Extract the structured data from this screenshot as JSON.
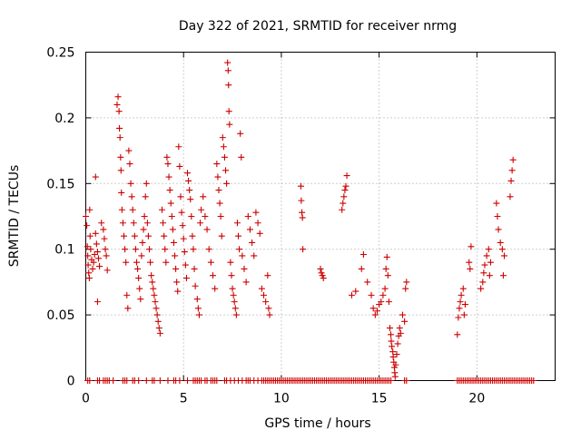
{
  "chart_data": {
    "type": "scatter",
    "title": "Day 322 of 2021, SRMTID for receiver nrmg",
    "xlabel": "GPS time / hours",
    "ylabel": "SRMTID / TECUs",
    "xlim": [
      0,
      24
    ],
    "ylim": [
      0,
      0.25
    ],
    "x_ticks": [
      0,
      5,
      10,
      15,
      20
    ],
    "x_tick_labels": [
      "0",
      "5",
      "10",
      "15",
      "20"
    ],
    "y_ticks": [
      0,
      0.05,
      0.1,
      0.15,
      0.2,
      0.25
    ],
    "y_tick_labels": [
      "0",
      "0.05",
      "0.1",
      "0.15",
      "0.2",
      "0.25"
    ],
    "grid": true,
    "series": [
      {
        "name": "SRMTID",
        "color": "#cc0000",
        "marker": "plus",
        "points": [
          [
            0.0,
            0.125
          ],
          [
            0.05,
            0.118
          ],
          [
            0.08,
            0.102
          ],
          [
            0.1,
            0.095
          ],
          [
            0.12,
            0.088
          ],
          [
            0.15,
            0.082
          ],
          [
            0.18,
            0.078
          ],
          [
            0.2,
            0.13
          ],
          [
            0.22,
            0.11
          ],
          [
            0.25,
            0.1
          ],
          [
            0.3,
            0.092
          ],
          [
            0.35,
            0.085
          ],
          [
            0.4,
            0.09
          ],
          [
            0.45,
            0.096
          ],
          [
            0.5,
            0.112
          ],
          [
            0.5,
            0.155
          ],
          [
            0.55,
            0.104
          ],
          [
            0.6,
            0.098
          ],
          [
            0.6,
            0.06
          ],
          [
            0.65,
            0.093
          ],
          [
            0.7,
            0.087
          ],
          [
            0.8,
            0.12
          ],
          [
            0.9,
            0.115
          ],
          [
            0.95,
            0.108
          ],
          [
            1.0,
            0.1
          ],
          [
            1.05,
            0.095
          ],
          [
            1.1,
            0.084
          ],
          [
            1.6,
            0.21
          ],
          [
            1.65,
            0.216
          ],
          [
            1.7,
            0.205
          ],
          [
            1.72,
            0.192
          ],
          [
            1.75,
            0.185
          ],
          [
            1.78,
            0.17
          ],
          [
            1.8,
            0.16
          ],
          [
            1.82,
            0.143
          ],
          [
            1.85,
            0.13
          ],
          [
            1.9,
            0.12
          ],
          [
            1.95,
            0.11
          ],
          [
            2.0,
            0.1
          ],
          [
            2.05,
            0.09
          ],
          [
            2.1,
            0.065
          ],
          [
            2.15,
            0.055
          ],
          [
            2.2,
            0.175
          ],
          [
            2.25,
            0.165
          ],
          [
            2.3,
            0.15
          ],
          [
            2.35,
            0.14
          ],
          [
            2.4,
            0.13
          ],
          [
            2.45,
            0.12
          ],
          [
            2.5,
            0.11
          ],
          [
            2.55,
            0.1
          ],
          [
            2.6,
            0.09
          ],
          [
            2.65,
            0.085
          ],
          [
            2.7,
            0.078
          ],
          [
            2.75,
            0.07
          ],
          [
            2.8,
            0.062
          ],
          [
            2.85,
            0.095
          ],
          [
            2.9,
            0.105
          ],
          [
            2.95,
            0.115
          ],
          [
            3.0,
            0.125
          ],
          [
            3.05,
            0.14
          ],
          [
            3.1,
            0.15
          ],
          [
            3.15,
            0.12
          ],
          [
            3.2,
            0.11
          ],
          [
            3.25,
            0.1
          ],
          [
            3.3,
            0.09
          ],
          [
            3.35,
            0.08
          ],
          [
            3.4,
            0.075
          ],
          [
            3.45,
            0.07
          ],
          [
            3.5,
            0.065
          ],
          [
            3.55,
            0.06
          ],
          [
            3.6,
            0.055
          ],
          [
            3.65,
            0.05
          ],
          [
            3.7,
            0.045
          ],
          [
            3.75,
            0.04
          ],
          [
            3.8,
            0.036
          ],
          [
            3.9,
            0.13
          ],
          [
            3.95,
            0.12
          ],
          [
            4.0,
            0.11
          ],
          [
            4.05,
            0.1
          ],
          [
            4.1,
            0.09
          ],
          [
            4.15,
            0.17
          ],
          [
            4.2,
            0.165
          ],
          [
            4.25,
            0.155
          ],
          [
            4.3,
            0.145
          ],
          [
            4.35,
            0.135
          ],
          [
            4.4,
            0.125
          ],
          [
            4.45,
            0.115
          ],
          [
            4.5,
            0.105
          ],
          [
            4.55,
            0.095
          ],
          [
            4.6,
            0.085
          ],
          [
            4.65,
            0.075
          ],
          [
            4.7,
            0.068
          ],
          [
            4.75,
            0.178
          ],
          [
            4.8,
            0.163
          ],
          [
            4.85,
            0.14
          ],
          [
            4.9,
            0.128
          ],
          [
            4.95,
            0.118
          ],
          [
            5.0,
            0.108
          ],
          [
            5.05,
            0.098
          ],
          [
            5.1,
            0.088
          ],
          [
            5.15,
            0.078
          ],
          [
            5.2,
            0.158
          ],
          [
            5.25,
            0.152
          ],
          [
            5.3,
            0.145
          ],
          [
            5.35,
            0.138
          ],
          [
            5.4,
            0.125
          ],
          [
            5.45,
            0.11
          ],
          [
            5.5,
            0.1
          ],
          [
            5.55,
            0.085
          ],
          [
            5.6,
            0.072
          ],
          [
            5.7,
            0.062
          ],
          [
            5.75,
            0.055
          ],
          [
            5.8,
            0.05
          ],
          [
            5.85,
            0.12
          ],
          [
            5.9,
            0.13
          ],
          [
            6.0,
            0.14
          ],
          [
            6.1,
            0.125
          ],
          [
            6.2,
            0.115
          ],
          [
            6.3,
            0.1
          ],
          [
            6.4,
            0.09
          ],
          [
            6.5,
            0.08
          ],
          [
            6.6,
            0.07
          ],
          [
            6.7,
            0.165
          ],
          [
            6.75,
            0.155
          ],
          [
            6.8,
            0.145
          ],
          [
            6.85,
            0.135
          ],
          [
            6.9,
            0.125
          ],
          [
            6.95,
            0.11
          ],
          [
            7.0,
            0.185
          ],
          [
            7.05,
            0.178
          ],
          [
            7.1,
            0.17
          ],
          [
            7.15,
            0.16
          ],
          [
            7.2,
            0.15
          ],
          [
            7.25,
            0.242
          ],
          [
            7.28,
            0.236
          ],
          [
            7.3,
            0.225
          ],
          [
            7.32,
            0.205
          ],
          [
            7.35,
            0.195
          ],
          [
            7.4,
            0.09
          ],
          [
            7.45,
            0.08
          ],
          [
            7.5,
            0.07
          ],
          [
            7.55,
            0.065
          ],
          [
            7.6,
            0.06
          ],
          [
            7.65,
            0.055
          ],
          [
            7.7,
            0.05
          ],
          [
            7.75,
            0.12
          ],
          [
            7.8,
            0.11
          ],
          [
            7.85,
            0.1
          ],
          [
            7.9,
            0.188
          ],
          [
            7.95,
            0.17
          ],
          [
            8.0,
            0.095
          ],
          [
            8.1,
            0.085
          ],
          [
            8.2,
            0.075
          ],
          [
            8.3,
            0.125
          ],
          [
            8.4,
            0.115
          ],
          [
            8.5,
            0.105
          ],
          [
            8.6,
            0.095
          ],
          [
            8.7,
            0.128
          ],
          [
            8.8,
            0.12
          ],
          [
            8.9,
            0.112
          ],
          [
            9.0,
            0.07
          ],
          [
            9.1,
            0.065
          ],
          [
            9.2,
            0.06
          ],
          [
            9.3,
            0.08
          ],
          [
            9.35,
            0.055
          ],
          [
            9.4,
            0.05
          ],
          [
            11.0,
            0.148
          ],
          [
            11.02,
            0.137
          ],
          [
            11.05,
            0.128
          ],
          [
            11.08,
            0.124
          ],
          [
            11.1,
            0.1
          ],
          [
            12.0,
            0.085
          ],
          [
            12.05,
            0.082
          ],
          [
            12.1,
            0.08
          ],
          [
            12.15,
            0.078
          ],
          [
            13.1,
            0.13
          ],
          [
            13.15,
            0.135
          ],
          [
            13.2,
            0.14
          ],
          [
            13.25,
            0.145
          ],
          [
            13.3,
            0.148
          ],
          [
            13.35,
            0.156
          ],
          [
            13.6,
            0.065
          ],
          [
            13.8,
            0.068
          ],
          [
            14.1,
            0.085
          ],
          [
            14.2,
            0.096
          ],
          [
            14.4,
            0.075
          ],
          [
            14.6,
            0.065
          ],
          [
            14.7,
            0.055
          ],
          [
            14.8,
            0.05
          ],
          [
            14.9,
            0.053
          ],
          [
            15.0,
            0.058
          ],
          [
            15.1,
            0.06
          ],
          [
            15.2,
            0.065
          ],
          [
            15.3,
            0.07
          ],
          [
            15.35,
            0.085
          ],
          [
            15.4,
            0.094
          ],
          [
            15.45,
            0.08
          ],
          [
            15.5,
            0.06
          ],
          [
            15.55,
            0.04
          ],
          [
            15.6,
            0.035
          ],
          [
            15.62,
            0.03
          ],
          [
            15.65,
            0.026
          ],
          [
            15.7,
            0.022
          ],
          [
            15.72,
            0.018
          ],
          [
            15.75,
            0.014
          ],
          [
            15.78,
            0.01
          ],
          [
            15.8,
            0.006
          ],
          [
            15.82,
            0.003
          ],
          [
            15.85,
            0.012
          ],
          [
            15.9,
            0.02
          ],
          [
            15.95,
            0.028
          ],
          [
            16.0,
            0.034
          ],
          [
            16.05,
            0.04
          ],
          [
            16.1,
            0.036
          ],
          [
            16.2,
            0.05
          ],
          [
            16.3,
            0.045
          ],
          [
            16.35,
            0.07
          ],
          [
            16.4,
            0.075
          ],
          [
            19.0,
            0.035
          ],
          [
            19.05,
            0.048
          ],
          [
            19.1,
            0.055
          ],
          [
            19.15,
            0.06
          ],
          [
            19.2,
            0.065
          ],
          [
            19.3,
            0.07
          ],
          [
            19.35,
            0.05
          ],
          [
            19.4,
            0.058
          ],
          [
            19.6,
            0.09
          ],
          [
            19.65,
            0.085
          ],
          [
            19.7,
            0.102
          ],
          [
            20.2,
            0.07
          ],
          [
            20.3,
            0.075
          ],
          [
            20.35,
            0.082
          ],
          [
            20.4,
            0.088
          ],
          [
            20.5,
            0.095
          ],
          [
            20.6,
            0.1
          ],
          [
            20.65,
            0.08
          ],
          [
            20.7,
            0.09
          ],
          [
            21.0,
            0.135
          ],
          [
            21.05,
            0.125
          ],
          [
            21.1,
            0.115
          ],
          [
            21.2,
            0.105
          ],
          [
            21.3,
            0.1
          ],
          [
            21.35,
            0.08
          ],
          [
            21.4,
            0.095
          ],
          [
            21.7,
            0.14
          ],
          [
            21.75,
            0.152
          ],
          [
            21.8,
            0.16
          ],
          [
            21.85,
            0.168
          ]
        ],
        "zero_points_x": [
          0.1,
          0.2,
          0.6,
          0.7,
          0.9,
          1.0,
          1.1,
          1.2,
          1.4,
          1.9,
          2.0,
          2.1,
          2.4,
          2.5,
          2.7,
          3.1,
          3.4,
          3.5,
          3.8,
          4.2,
          4.5,
          4.6,
          4.8,
          5.2,
          5.5,
          5.6,
          5.7,
          5.8,
          5.9,
          6.1,
          6.2,
          6.4,
          6.5,
          6.6,
          6.7,
          7.1,
          7.2,
          7.4,
          7.6,
          7.8,
          8.0,
          8.2,
          8.3,
          8.4,
          8.6,
          8.8,
          9.0,
          9.1,
          9.2,
          9.3,
          9.4,
          9.5,
          9.6,
          9.7,
          9.8,
          9.9,
          10.0,
          10.1,
          10.2,
          10.3,
          10.4,
          10.5,
          10.6,
          10.7,
          10.8,
          10.9,
          11.0,
          11.1,
          11.2,
          11.3,
          11.4,
          11.5,
          11.6,
          11.7,
          11.8,
          11.9,
          12.0,
          12.1,
          12.2,
          12.3,
          12.4,
          12.5,
          12.6,
          12.7,
          12.8,
          12.9,
          13.0,
          13.1,
          13.2,
          13.3,
          13.4,
          13.5,
          13.6,
          13.7,
          13.8,
          13.9,
          14.0,
          14.1,
          14.2,
          14.3,
          14.4,
          14.5,
          14.6,
          14.7,
          14.8,
          14.9,
          15.0,
          15.1,
          15.2,
          15.3,
          15.4,
          15.5,
          15.6,
          16.3,
          16.4,
          19.0,
          19.1,
          19.2,
          19.3,
          19.4,
          19.5,
          19.6,
          19.7,
          19.8,
          19.9,
          20.0,
          20.1,
          20.2,
          20.3,
          20.4,
          20.5,
          20.6,
          20.7,
          20.8,
          20.9,
          21.0,
          21.1,
          21.2,
          21.3,
          21.4,
          21.5,
          21.6,
          21.7,
          21.8,
          21.9,
          22.0,
          22.1,
          22.2,
          22.3,
          22.4,
          22.5,
          22.6,
          22.7,
          22.8,
          22.9
        ]
      }
    ]
  }
}
